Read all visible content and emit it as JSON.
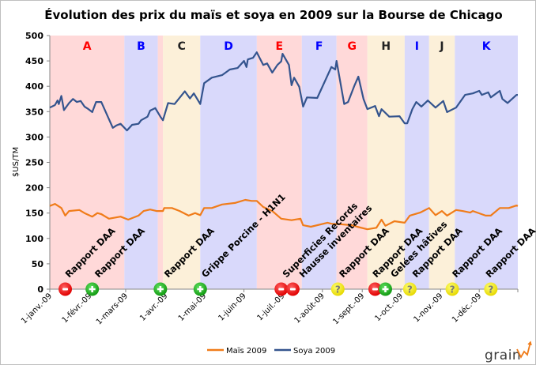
{
  "chart_data": {
    "type": "line",
    "title": "Évolution des prix du maïs et soya en 2009 sur la Bourse de Chicago",
    "ylabel": "$US/TM",
    "xlabel": "",
    "ylim": [
      0,
      500
    ],
    "yticks": [
      0,
      50,
      100,
      150,
      200,
      250,
      300,
      350,
      400,
      450,
      500
    ],
    "xlim": [
      "2009-01-01",
      "2009-12-31"
    ],
    "xticks": [
      {
        "date": "2009-01-01",
        "label": "1-janv.-09"
      },
      {
        "date": "2009-02-01",
        "label": "1-févr.-09"
      },
      {
        "date": "2009-03-01",
        "label": "1-mars-09"
      },
      {
        "date": "2009-04-01",
        "label": "1-avr.-09"
      },
      {
        "date": "2009-05-01",
        "label": "1-mai-09"
      },
      {
        "date": "2009-06-01",
        "label": "1-juin-09"
      },
      {
        "date": "2009-07-01",
        "label": "1-juil.-09"
      },
      {
        "date": "2009-08-01",
        "label": "1-août-09"
      },
      {
        "date": "2009-09-01",
        "label": "1-sept.-09"
      },
      {
        "date": "2009-10-01",
        "label": "1-oct.-09"
      },
      {
        "date": "2009-11-01",
        "label": "1-nov.-09"
      },
      {
        "date": "2009-12-01",
        "label": "1-déc.-09"
      }
    ],
    "grid": false,
    "legend_placement": "bottom",
    "series": [
      {
        "name": "Maïs 2009",
        "color": "#f07c1a",
        "points": [
          [
            "2009-01-01",
            164
          ],
          [
            "2009-01-05",
            168
          ],
          [
            "2009-01-10",
            160
          ],
          [
            "2009-01-13",
            145
          ],
          [
            "2009-01-16",
            154
          ],
          [
            "2009-01-24",
            156
          ],
          [
            "2009-01-28",
            150
          ],
          [
            "2009-02-03",
            143
          ],
          [
            "2009-02-07",
            150
          ],
          [
            "2009-02-10",
            148
          ],
          [
            "2009-02-16",
            139
          ],
          [
            "2009-02-25",
            143
          ],
          [
            "2009-03-03",
            137
          ],
          [
            "2009-03-11",
            145
          ],
          [
            "2009-03-15",
            154
          ],
          [
            "2009-03-20",
            157
          ],
          [
            "2009-03-25",
            154
          ],
          [
            "2009-03-30",
            154
          ],
          [
            "2009-03-31",
            160
          ],
          [
            "2009-04-06",
            160
          ],
          [
            "2009-04-12",
            154
          ],
          [
            "2009-04-19",
            145
          ],
          [
            "2009-04-24",
            150
          ],
          [
            "2009-04-28",
            146
          ],
          [
            "2009-05-01",
            160
          ],
          [
            "2009-05-07",
            160
          ],
          [
            "2009-05-15",
            167
          ],
          [
            "2009-05-25",
            170
          ],
          [
            "2009-06-02",
            176
          ],
          [
            "2009-06-07",
            174
          ],
          [
            "2009-06-11",
            174
          ],
          [
            "2009-06-16",
            162
          ],
          [
            "2009-06-23",
            154
          ],
          [
            "2009-06-30",
            139
          ],
          [
            "2009-07-08",
            136
          ],
          [
            "2009-07-15",
            139
          ],
          [
            "2009-07-17",
            126
          ],
          [
            "2009-07-23",
            123
          ],
          [
            "2009-08-05",
            131
          ],
          [
            "2009-08-08",
            129
          ],
          [
            "2009-08-15",
            128
          ],
          [
            "2009-08-24",
            126
          ],
          [
            "2009-08-28",
            123
          ],
          [
            "2009-09-05",
            118
          ],
          [
            "2009-09-12",
            121
          ],
          [
            "2009-09-16",
            137
          ],
          [
            "2009-09-19",
            125
          ],
          [
            "2009-09-26",
            134
          ],
          [
            "2009-10-04",
            131
          ],
          [
            "2009-10-08",
            145
          ],
          [
            "2009-10-16",
            151
          ],
          [
            "2009-10-23",
            160
          ],
          [
            "2009-10-28",
            146
          ],
          [
            "2009-11-02",
            154
          ],
          [
            "2009-11-06",
            145
          ],
          [
            "2009-11-13",
            156
          ],
          [
            "2009-11-18",
            154
          ],
          [
            "2009-11-24",
            151
          ],
          [
            "2009-11-26",
            154
          ],
          [
            "2009-12-06",
            145
          ],
          [
            "2009-12-10",
            145
          ],
          [
            "2009-12-17",
            160
          ],
          [
            "2009-12-24",
            160
          ],
          [
            "2009-12-30",
            165
          ],
          [
            "2009-12-31",
            164
          ]
        ]
      },
      {
        "name": "Soya 2009",
        "color": "#34548e",
        "points": [
          [
            "2009-01-01",
            358
          ],
          [
            "2009-01-05",
            363
          ],
          [
            "2009-01-07",
            372
          ],
          [
            "2009-01-08",
            365
          ],
          [
            "2009-01-10",
            381
          ],
          [
            "2009-01-12",
            353
          ],
          [
            "2009-01-16",
            367
          ],
          [
            "2009-01-19",
            375
          ],
          [
            "2009-01-22",
            369
          ],
          [
            "2009-01-25",
            371
          ],
          [
            "2009-01-28",
            360
          ],
          [
            "2009-01-31",
            355
          ],
          [
            "2009-02-03",
            349
          ],
          [
            "2009-02-06",
            369
          ],
          [
            "2009-02-10",
            369
          ],
          [
            "2009-02-19",
            318
          ],
          [
            "2009-02-22",
            323
          ],
          [
            "2009-02-25",
            326
          ],
          [
            "2009-03-02",
            313
          ],
          [
            "2009-03-06",
            324
          ],
          [
            "2009-03-11",
            326
          ],
          [
            "2009-03-13",
            333
          ],
          [
            "2009-03-18",
            340
          ],
          [
            "2009-03-20",
            352
          ],
          [
            "2009-03-24",
            357
          ],
          [
            "2009-03-28",
            340
          ],
          [
            "2009-03-30",
            333
          ],
          [
            "2009-04-03",
            367
          ],
          [
            "2009-04-08",
            365
          ],
          [
            "2009-04-16",
            390
          ],
          [
            "2009-04-20",
            376
          ],
          [
            "2009-04-23",
            386
          ],
          [
            "2009-04-28",
            365
          ],
          [
            "2009-05-01",
            406
          ],
          [
            "2009-05-07",
            417
          ],
          [
            "2009-05-15",
            422
          ],
          [
            "2009-05-21",
            433
          ],
          [
            "2009-05-27",
            436
          ],
          [
            "2009-06-01",
            450
          ],
          [
            "2009-06-03",
            438
          ],
          [
            "2009-06-04",
            453
          ],
          [
            "2009-06-08",
            456
          ],
          [
            "2009-06-11",
            467
          ],
          [
            "2009-06-16",
            442
          ],
          [
            "2009-06-19",
            445
          ],
          [
            "2009-06-23",
            427
          ],
          [
            "2009-06-27",
            442
          ],
          [
            "2009-06-30",
            449
          ],
          [
            "2009-07-01",
            464
          ],
          [
            "2009-07-06",
            442
          ],
          [
            "2009-07-08",
            402
          ],
          [
            "2009-07-10",
            417
          ],
          [
            "2009-07-14",
            399
          ],
          [
            "2009-07-17",
            360
          ],
          [
            "2009-07-20",
            378
          ],
          [
            "2009-07-28",
            377
          ],
          [
            "2009-08-08",
            438
          ],
          [
            "2009-08-11",
            433
          ],
          [
            "2009-08-12",
            450
          ],
          [
            "2009-08-15",
            407
          ],
          [
            "2009-08-18",
            365
          ],
          [
            "2009-08-21",
            369
          ],
          [
            "2009-08-26",
            402
          ],
          [
            "2009-08-29",
            419
          ],
          [
            "2009-09-02",
            375
          ],
          [
            "2009-09-05",
            355
          ],
          [
            "2009-09-11",
            361
          ],
          [
            "2009-09-14",
            341
          ],
          [
            "2009-09-16",
            355
          ],
          [
            "2009-09-22",
            340
          ],
          [
            "2009-09-30",
            341
          ],
          [
            "2009-10-04",
            327
          ],
          [
            "2009-10-06",
            327
          ],
          [
            "2009-10-10",
            355
          ],
          [
            "2009-10-13",
            369
          ],
          [
            "2009-10-17",
            360
          ],
          [
            "2009-10-22",
            372
          ],
          [
            "2009-10-28",
            358
          ],
          [
            "2009-11-03",
            371
          ],
          [
            "2009-11-06",
            349
          ],
          [
            "2009-11-13",
            358
          ],
          [
            "2009-11-20",
            383
          ],
          [
            "2009-11-26",
            386
          ],
          [
            "2009-12-01",
            391
          ],
          [
            "2009-12-03",
            383
          ],
          [
            "2009-12-08",
            388
          ],
          [
            "2009-12-10",
            378
          ],
          [
            "2009-12-17",
            391
          ],
          [
            "2009-12-19",
            375
          ],
          [
            "2009-12-23",
            367
          ],
          [
            "2009-12-30",
            383
          ],
          [
            "2009-12-31",
            383
          ]
        ]
      }
    ],
    "periods": [
      {
        "label": "A",
        "start": "2009-01-01",
        "end": "2009-02-28",
        "fill": "#ffd9d9",
        "label_color": "#ff0000"
      },
      {
        "label": "B",
        "start": "2009-02-28",
        "end": "2009-03-26",
        "fill": "#d9d9fb",
        "label_color": "#0000ff"
      },
      {
        "label": "",
        "start": "2009-03-26",
        "end": "2009-03-30",
        "fill": "#ffd9d9",
        "label_color": "#ff0000"
      },
      {
        "label": "C",
        "start": "2009-03-30",
        "end": "2009-04-28",
        "fill": "#fcf0d9",
        "label_color": "#222222"
      },
      {
        "label": "D",
        "start": "2009-04-28",
        "end": "2009-06-11",
        "fill": "#d9d9fb",
        "label_color": "#0000ff"
      },
      {
        "label": "E",
        "start": "2009-06-11",
        "end": "2009-07-16",
        "fill": "#ffd9d9",
        "label_color": "#ff0000"
      },
      {
        "label": "F",
        "start": "2009-07-16",
        "end": "2009-08-12",
        "fill": "#d9d9fb",
        "label_color": "#0000ff"
      },
      {
        "label": "G",
        "start": "2009-08-12",
        "end": "2009-09-05",
        "fill": "#ffd9d9",
        "label_color": "#ff0000"
      },
      {
        "label": "H",
        "start": "2009-09-05",
        "end": "2009-10-04",
        "fill": "#fcf0d9",
        "label_color": "#222222"
      },
      {
        "label": "I",
        "start": "2009-10-04",
        "end": "2009-10-23",
        "fill": "#d9d9fb",
        "label_color": "#0000ff"
      },
      {
        "label": "J",
        "start": "2009-10-23",
        "end": "2009-11-12",
        "fill": "#fcf0d9",
        "label_color": "#222222"
      },
      {
        "label": "K",
        "start": "2009-11-12",
        "end": "2009-12-31",
        "fill": "#d9d9fb",
        "label_color": "#0000ff"
      }
    ],
    "event_markers": [
      {
        "date": "2009-01-13",
        "type": "negative",
        "icon": "minus-icon"
      },
      {
        "date": "2009-02-03",
        "type": "positive",
        "icon": "plus-icon"
      },
      {
        "date": "2009-03-28",
        "type": "positive",
        "icon": "plus-icon"
      },
      {
        "date": "2009-04-28",
        "type": "positive",
        "icon": "plus-icon"
      },
      {
        "date": "2009-06-30",
        "type": "negative",
        "icon": "minus-icon"
      },
      {
        "date": "2009-07-09",
        "type": "negative",
        "icon": "minus-icon"
      },
      {
        "date": "2009-08-13",
        "type": "uncertain",
        "icon": "question-icon"
      },
      {
        "date": "2009-09-11",
        "type": "negative",
        "icon": "minus-icon"
      },
      {
        "date": "2009-09-19",
        "type": "positive",
        "icon": "plus-icon"
      },
      {
        "date": "2009-10-08",
        "type": "uncertain",
        "icon": "question-icon"
      },
      {
        "date": "2009-11-10",
        "type": "uncertain",
        "icon": "question-icon"
      },
      {
        "date": "2009-12-10",
        "type": "uncertain",
        "icon": "question-icon"
      }
    ],
    "annotations": [
      {
        "date": "2009-01-16",
        "text": "Rapport DAA"
      },
      {
        "date": "2009-02-08",
        "text": "Rapport DAA"
      },
      {
        "date": "2009-04-03",
        "text": "Rapport DAA"
      },
      {
        "date": "2009-05-02",
        "text": "Grippe Porcine - H1N1"
      },
      {
        "date": "2009-07-04",
        "text": "Superficies Records"
      },
      {
        "date": "2009-07-17",
        "text": "Hausse inventaires"
      },
      {
        "date": "2009-08-17",
        "text": "Rapport DAA"
      },
      {
        "date": "2009-09-12",
        "text": "Rapport DAA"
      },
      {
        "date": "2009-09-26",
        "text": "Gelées hâtives"
      },
      {
        "date": "2009-10-13",
        "text": "Rapport DAA"
      },
      {
        "date": "2009-11-13",
        "text": "Rapport DAA"
      },
      {
        "date": "2009-12-09",
        "text": "Rapport DAA"
      }
    ]
  },
  "logo": {
    "text": "grainWIZ",
    "prefix": "grain",
    "suffix": "IZ",
    "color": "#3a3a3a",
    "accent": "#f07c1a"
  }
}
